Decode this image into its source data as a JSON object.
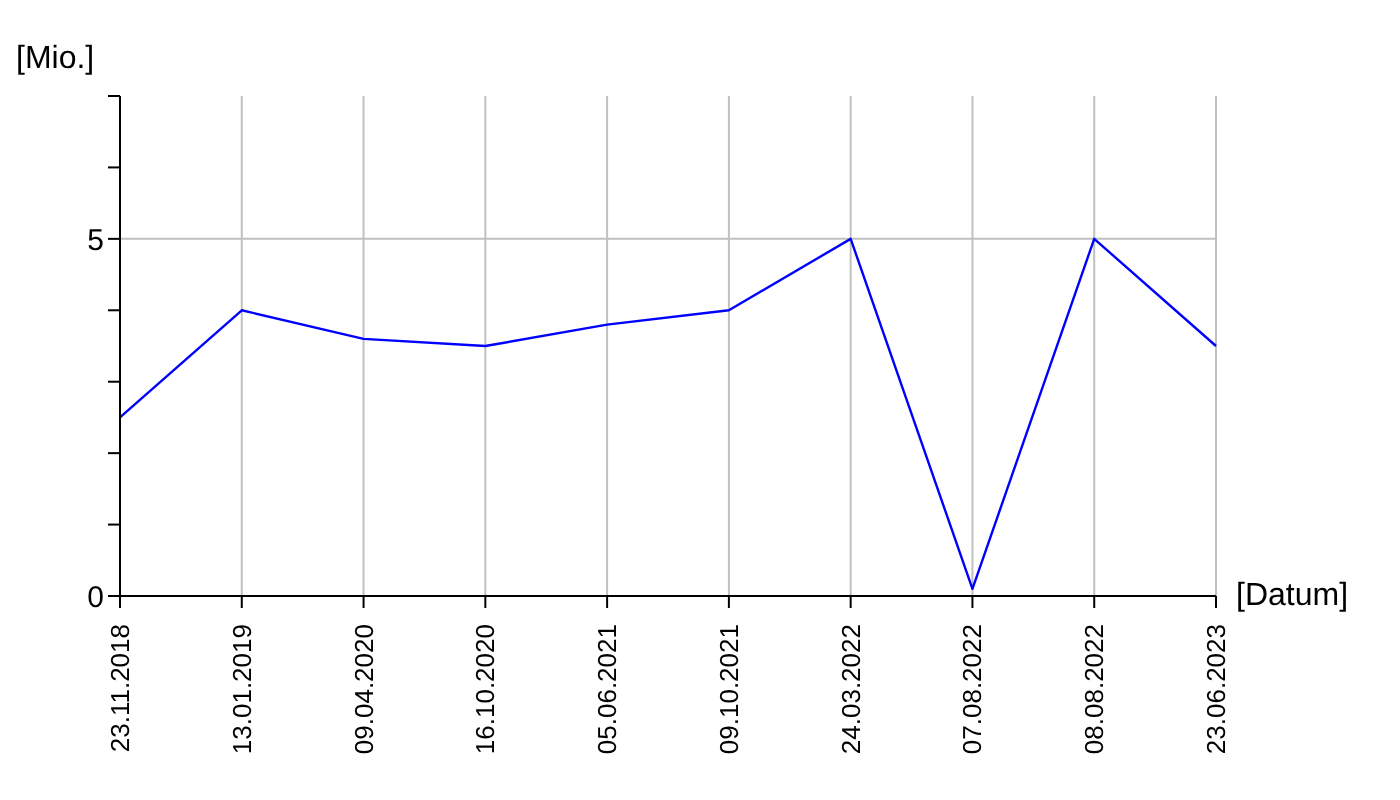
{
  "chart_data": {
    "type": "line",
    "xlabel": "[Datum]",
    "ylabel": "[Mio.]",
    "categories": [
      "23.11.2018",
      "13.01.2019",
      "09.04.2020",
      "16.10.2020",
      "05.06.2021",
      "09.10.2021",
      "24.03.2022",
      "07.08.2022",
      "08.08.2022",
      "23.06.2023"
    ],
    "series": [
      {
        "color": "#0000ff",
        "values": [
          2.5,
          4.0,
          3.6,
          3.5,
          3.8,
          4.0,
          5.0,
          0.1,
          5.0,
          3.5
        ]
      }
    ],
    "ylim": [
      0,
      7
    ],
    "yticks": [
      0,
      {
        "value": 1,
        "label": null
      },
      {
        "value": 2,
        "label": null
      },
      {
        "value": 3,
        "label": null
      },
      {
        "value": 4,
        "label": null
      },
      5,
      {
        "value": 6,
        "label": null
      },
      {
        "value": 7,
        "label": null
      }
    ],
    "grid": true,
    "marker": "none",
    "line_style": "solid"
  }
}
